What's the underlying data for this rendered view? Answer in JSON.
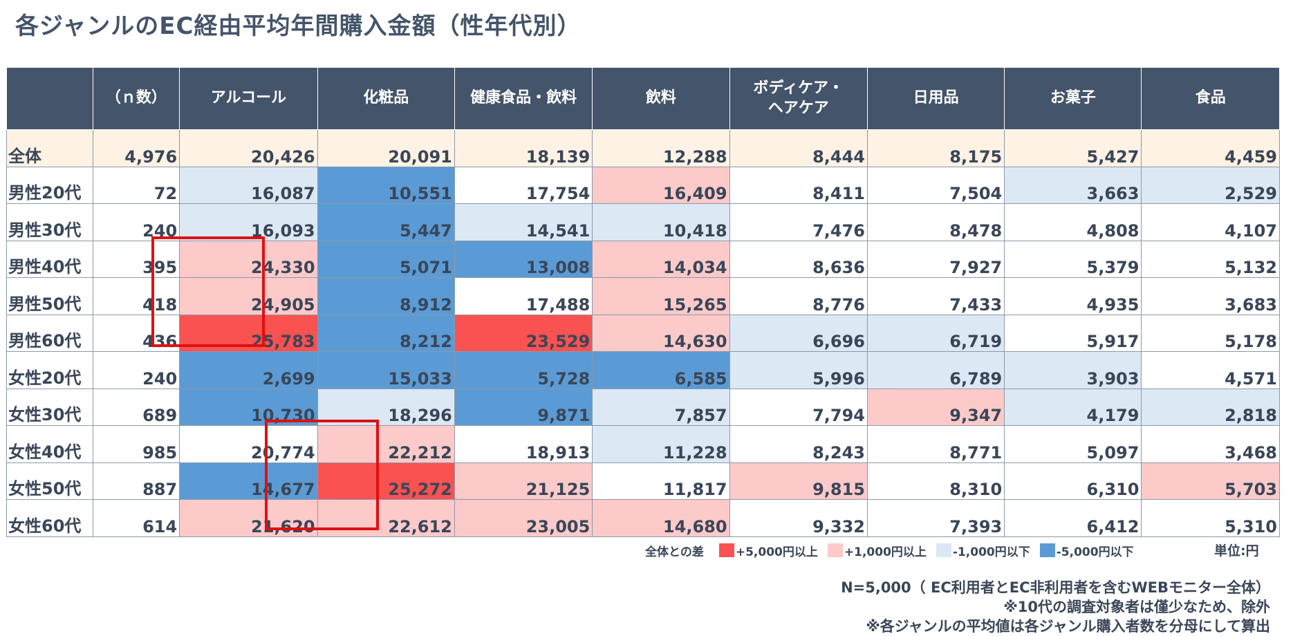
{
  "title": "各ジャンルのEC経由平均年間購入金額（性年代別）",
  "chart_data": {
    "type": "table",
    "title": "各ジャンルのEC経由平均年間購入金額（性年代別）",
    "columns": [
      "",
      "（ｎ数）",
      "アルコール",
      "化粧品",
      "健康食品・飲料",
      "飲料",
      "ボディケア・\nヘアケア",
      "日用品",
      "お菓子",
      "食品"
    ],
    "rows": [
      {
        "label": "全体",
        "n": "4,976",
        "values": [
          "20,426",
          "20,091",
          "18,139",
          "12,288",
          "8,444",
          "8,175",
          "5,427",
          "4,459"
        ],
        "diff": [
          "",
          "",
          "",
          "",
          "",
          "",
          "",
          ""
        ]
      },
      {
        "label": "男性20代",
        "n": "72",
        "values": [
          "16,087",
          "10,551",
          "17,754",
          "16,409",
          "8,411",
          "7,504",
          "3,663",
          "2,529"
        ],
        "diff": [
          "minus1",
          "minus5",
          "",
          "plus1",
          "",
          "",
          "minus1",
          "minus1"
        ]
      },
      {
        "label": "男性30代",
        "n": "240",
        "values": [
          "16,093",
          "5,447",
          "14,541",
          "10,418",
          "7,476",
          "8,478",
          "4,808",
          "4,107"
        ],
        "diff": [
          "minus1",
          "minus5",
          "minus1",
          "minus1",
          "",
          "",
          "",
          ""
        ]
      },
      {
        "label": "男性40代",
        "n": "395",
        "values": [
          "24,330",
          "5,071",
          "13,008",
          "14,034",
          "8,636",
          "7,927",
          "5,379",
          "5,132"
        ],
        "diff": [
          "plus1",
          "minus5",
          "minus5",
          "plus1",
          "",
          "",
          "",
          ""
        ]
      },
      {
        "label": "男性50代",
        "n": "418",
        "values": [
          "24,905",
          "8,912",
          "17,488",
          "15,265",
          "8,776",
          "7,433",
          "4,935",
          "3,683"
        ],
        "diff": [
          "plus1",
          "minus5",
          "",
          "plus1",
          "",
          "",
          "",
          ""
        ]
      },
      {
        "label": "男性60代",
        "n": "436",
        "values": [
          "25,783",
          "8,212",
          "23,529",
          "14,630",
          "6,696",
          "6,719",
          "5,917",
          "5,178"
        ],
        "diff": [
          "plus5",
          "minus5",
          "plus5",
          "plus1",
          "minus1",
          "minus1",
          "",
          ""
        ]
      },
      {
        "label": "女性20代",
        "n": "240",
        "values": [
          "2,699",
          "15,033",
          "5,728",
          "6,585",
          "5,996",
          "6,789",
          "3,903",
          "4,571"
        ],
        "diff": [
          "minus5",
          "minus5",
          "minus5",
          "minus5",
          "minus1",
          "minus1",
          "minus1",
          ""
        ]
      },
      {
        "label": "女性30代",
        "n": "689",
        "values": [
          "10,730",
          "18,296",
          "9,871",
          "7,857",
          "7,794",
          "9,347",
          "4,179",
          "2,818"
        ],
        "diff": [
          "minus5",
          "minus1",
          "minus5",
          "minus1",
          "",
          "plus1",
          "minus1",
          "minus1"
        ]
      },
      {
        "label": "女性40代",
        "n": "985",
        "values": [
          "20,774",
          "22,212",
          "18,913",
          "11,228",
          "8,243",
          "8,771",
          "5,097",
          "3,468"
        ],
        "diff": [
          "",
          "plus1",
          "",
          "minus1",
          "",
          "",
          "",
          ""
        ]
      },
      {
        "label": "女性50代",
        "n": "887",
        "values": [
          "14,677",
          "25,272",
          "21,125",
          "11,817",
          "9,815",
          "8,310",
          "6,310",
          "5,703"
        ],
        "diff": [
          "minus5",
          "plus5",
          "plus1",
          "",
          "plus1",
          "",
          "",
          "plus1"
        ]
      },
      {
        "label": "女性60代",
        "n": "614",
        "values": [
          "21,620",
          "22,612",
          "23,005",
          "14,680",
          "9,332",
          "7,393",
          "6,412",
          "5,310"
        ],
        "diff": [
          "plus1",
          "plus1",
          "plus1",
          "plus1",
          "",
          "",
          "",
          ""
        ]
      }
    ],
    "highlights": [
      {
        "column": "アルコール",
        "rows": [
          "男性40代",
          "男性50代",
          "男性60代"
        ]
      },
      {
        "column": "化粧品",
        "rows": [
          "女性40代",
          "女性50代",
          "女性60代"
        ]
      }
    ]
  },
  "colors": {
    "header_bg": "#44546a",
    "total_row_bg": "#fdf2e4",
    "plus5": "#fa5151",
    "plus1": "#fdcaca",
    "minus1": "#dce8f4",
    "minus5": "#5b9bd5",
    "highlight": "#e01010"
  },
  "legend": {
    "label": "全体との差",
    "items": [
      {
        "key": "plus5",
        "text": "+5,000円以上"
      },
      {
        "key": "plus1",
        "text": "+1,000円以上"
      },
      {
        "key": "minus1",
        "text": "-1,000円以下"
      },
      {
        "key": "minus5",
        "text": "-5,000円以下"
      }
    ]
  },
  "unit": "単位:円",
  "notes": [
    "N=5,000（ EC利用者とEC非利用者を含むWEBモニター全体）",
    "※10代の調査対象者は僅少なため、除外",
    "※各ジャンルの平均値は各ジャンル購入者数を分母にして算出"
  ]
}
